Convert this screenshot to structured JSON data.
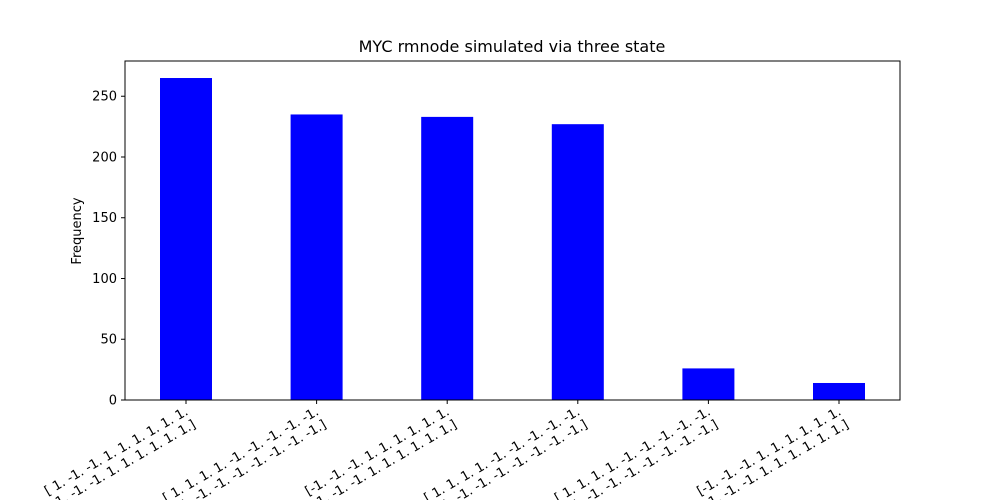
{
  "chart_data": {
    "type": "bar",
    "title": "MYC rmnode simulated via three state",
    "xlabel": "",
    "ylabel": "Frequency",
    "categories": [
      [
        "[ 1. -1. -1. 1. 1. 1. 1. 1. 1.",
        " 1. -1. -1. 1. 1. 1. 1. 1. 1.]"
      ],
      [
        "[ 1. 1. 1. 1. -1. -1. -1. -1. -1.",
        " -1. -1. -1. -1. -1. -1. -1. -1.]"
      ],
      [
        "[-1. -1. -1. 1. 1. 1. 1. 1. 1.",
        " -1. -1. -1. 1. 1. 1. 1. 1. 1.]"
      ],
      [
        "[ 1. 1. 1. 1. -1. -1. -1. -1. -1.",
        " 1. -1. -1. -1. -1. -1. -1. -1.]"
      ],
      [
        "[ 1. 1. 1. 1. -1. -1. -1. -1. -1.",
        " -1. -1. -1. -1. -1. -1. -1. -1.]"
      ],
      [
        "[-1. -1. -1. 1. 1. 1. 1. 1. 1.",
        " -1. -1. -1. 1. 1. 1. 1. 1. 1.]"
      ]
    ],
    "values": [
      265,
      235,
      233,
      227,
      26,
      14
    ],
    "ylim": [
      0,
      279
    ],
    "yticks": [
      0,
      50,
      100,
      150,
      200,
      250
    ],
    "bar_color": "#0000ff",
    "grid": false
  }
}
